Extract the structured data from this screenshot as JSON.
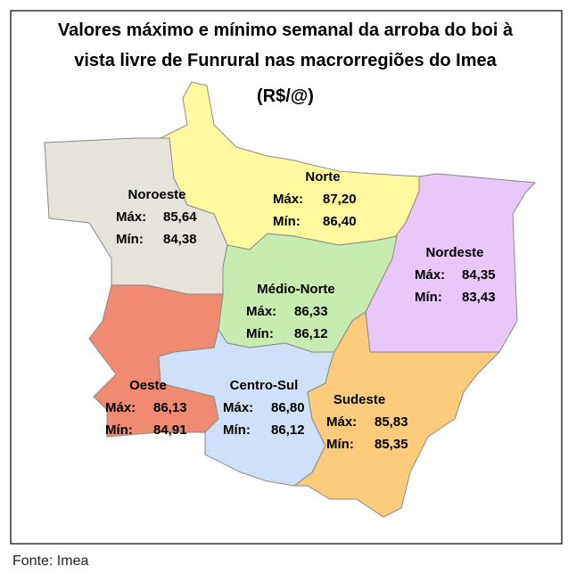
{
  "header": {
    "title": [
      "Valores máximo e mínimo semanal da arroba do boi à",
      "vista livre de Funrural nas macrorregiões do Imea",
      "(R$/@)"
    ]
  },
  "regions": [
    {
      "name": "Norte",
      "max_label": "Máx:",
      "max": "87,20",
      "min_label": "Mín:",
      "min": "86,40"
    },
    {
      "name": "Noroeste",
      "max_label": "Máx:",
      "max": "85,64",
      "min_label": "Mín:",
      "min": "84,38"
    },
    {
      "name": "Nordeste",
      "max_label": "Máx:",
      "max": "84,35",
      "min_label": "Mín:",
      "min": "83,43"
    },
    {
      "name": "Médio-Norte",
      "max_label": "Máx:",
      "max": "86,33",
      "min_label": "Mín:",
      "min": "86,12"
    },
    {
      "name": "Oeste",
      "max_label": "Máx:",
      "max": "86,13",
      "min_label": "Mín:",
      "min": "84,91"
    },
    {
      "name": "Centro-Sul",
      "max_label": "Máx:",
      "max": "86,80",
      "min_label": "Mín:",
      "min": "86,12"
    },
    {
      "name": "Sudeste",
      "max_label": "Máx:",
      "max": "85,83",
      "min_label": "Mín:",
      "min": "85,35"
    }
  ],
  "footer": {
    "source": "Fonte: Imea"
  }
}
